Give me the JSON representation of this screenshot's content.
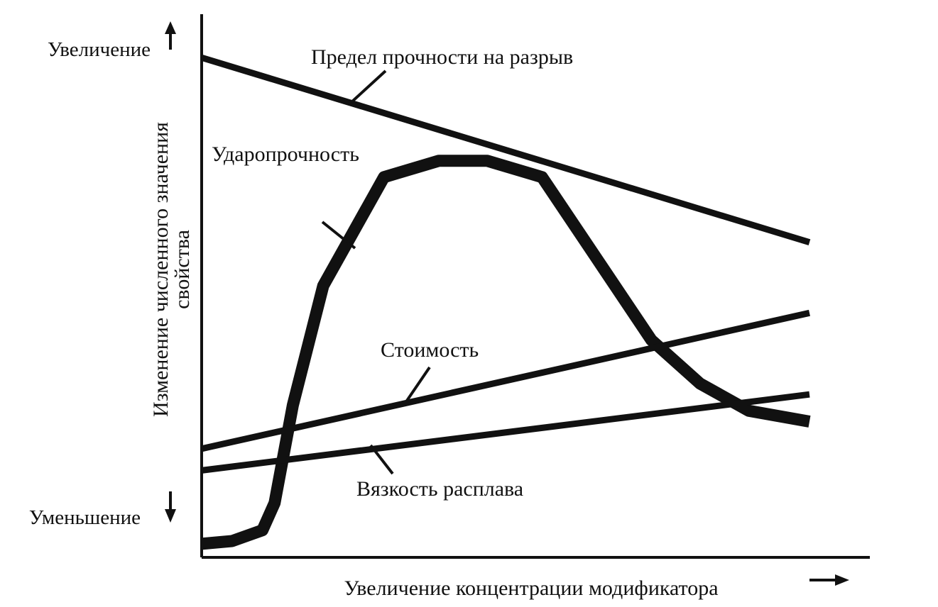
{
  "chart_data": {
    "type": "line",
    "title": "",
    "xlabel": "Увеличение концентрации модификатора",
    "ylabel_line1": "Изменение численного значения",
    "ylabel_line2": "свойства",
    "y_high_label": "Увеличение",
    "y_low_label": "Уменьшение",
    "xlim": [
      0,
      100
    ],
    "ylim": [
      0,
      100
    ],
    "grid": false,
    "legend": "none",
    "line_color": "#111111",
    "series": [
      {
        "name": "Предел прочности на разрыв",
        "x": [
          0,
          100
        ],
        "y": [
          92,
          58
        ]
      },
      {
        "name": "Ударопрочность",
        "x": [
          0,
          5,
          10,
          12,
          15,
          20,
          30,
          39,
          47,
          56,
          65,
          74,
          82,
          90,
          100
        ],
        "y": [
          2.5,
          3,
          5,
          10,
          28,
          50,
          70,
          73,
          73,
          70,
          55,
          40,
          32,
          27,
          25
        ]
      },
      {
        "name": "Стоимость",
        "x": [
          0,
          100
        ],
        "y": [
          20,
          45
        ]
      },
      {
        "name": "Вязкость расплава",
        "x": [
          0,
          100
        ],
        "y": [
          16,
          30
        ]
      }
    ]
  }
}
